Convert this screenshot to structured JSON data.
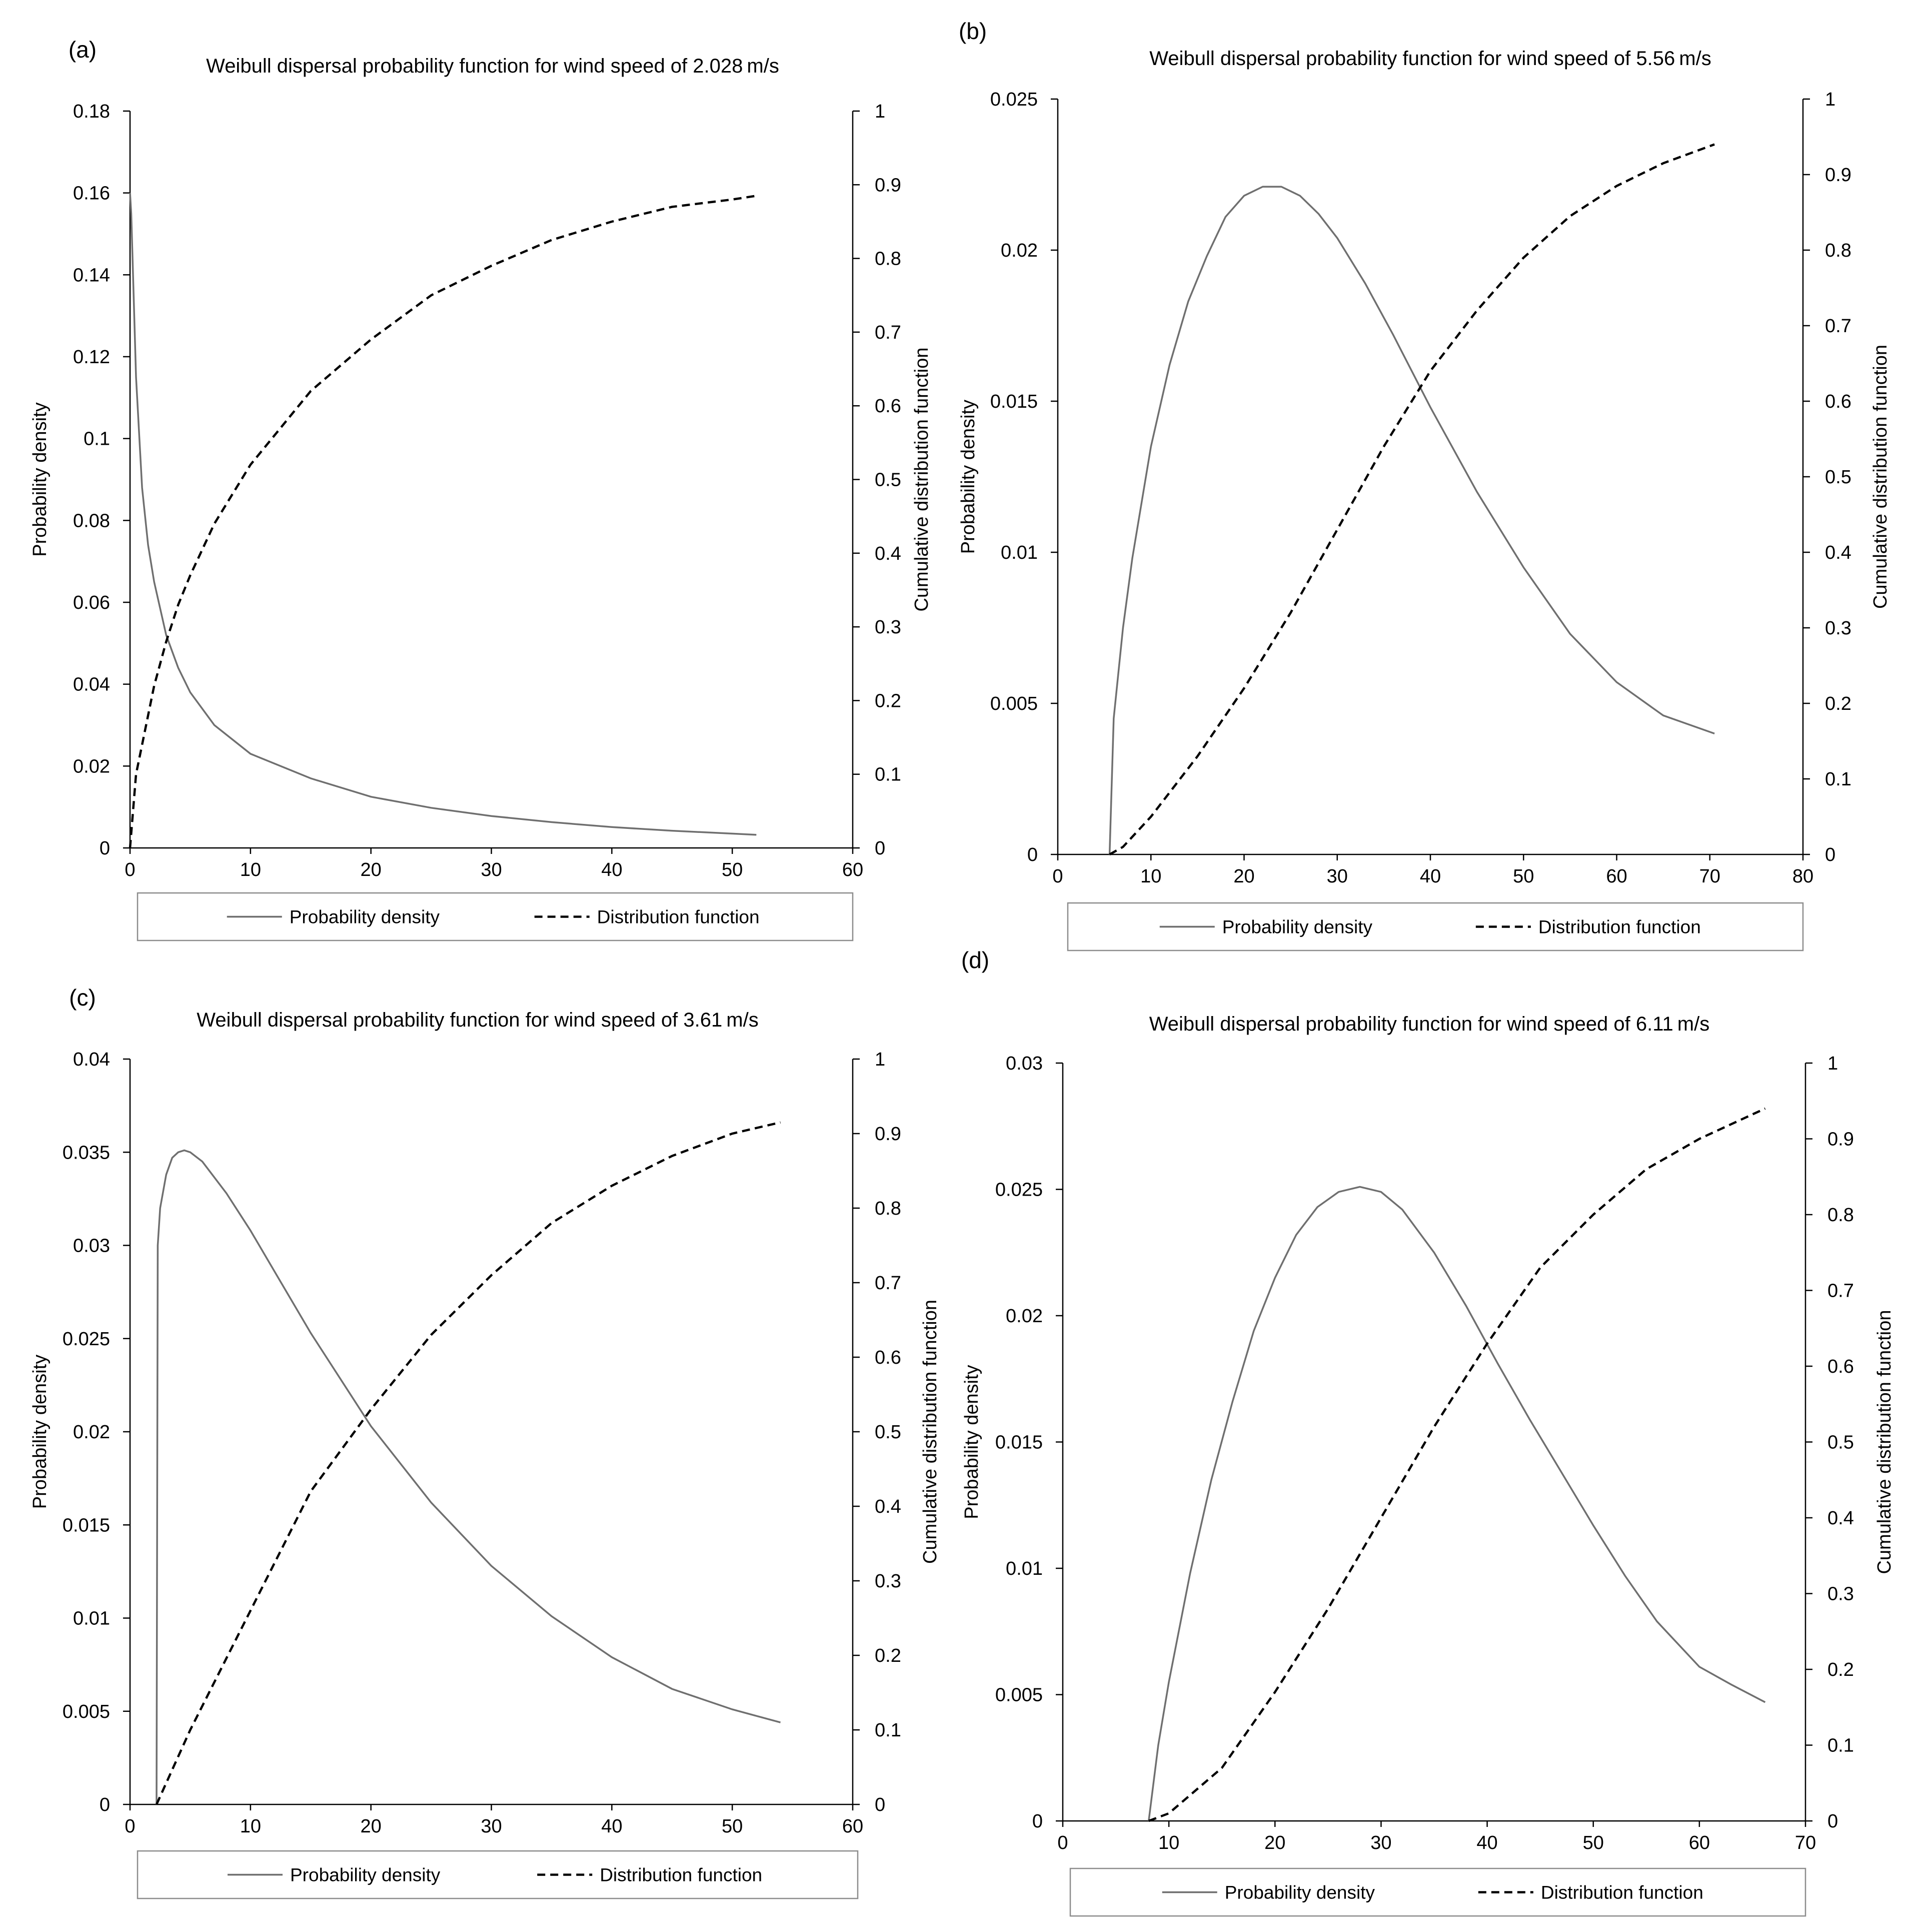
{
  "figure": {
    "legend_labels": [
      "Probability density",
      "Distribution function"
    ]
  },
  "chart_data": [
    {
      "panel": "(a)",
      "type": "line",
      "title": "Weibull dispersal probability function for wind speed of 2.028 m/s",
      "xlabel": "",
      "ylabel": "Probability density",
      "y2label": "Cumulative distribution function",
      "xlim": [
        0,
        60
      ],
      "ylim": [
        0,
        0.18
      ],
      "y2lim": [
        0,
        1
      ],
      "x_ticks": [
        "0",
        "10",
        "20",
        "30",
        "40",
        "50",
        "60"
      ],
      "y_ticks": [
        "0",
        "0.02",
        "0.04",
        "0.06",
        "0.08",
        "0.1",
        "0.12",
        "0.14",
        "0.16",
        "0.18"
      ],
      "y2_ticks": [
        "0",
        "0.1",
        "0.2",
        "0.3",
        "0.4",
        "0.5",
        "0.6",
        "0.7",
        "0.8",
        "0.9",
        "1"
      ],
      "legend": [
        "Probability density",
        "Distribution function"
      ],
      "series": [
        {
          "name": "Probability density",
          "axis": "left",
          "style": "solid",
          "x": [
            0,
            0.1,
            0.3,
            0.5,
            1,
            1.5,
            2,
            3,
            4,
            5,
            7,
            10,
            15,
            20,
            25,
            30,
            35,
            40,
            45,
            50,
            52
          ],
          "y": [
            0.16,
            0.155,
            0.135,
            0.115,
            0.088,
            0.074,
            0.065,
            0.052,
            0.044,
            0.038,
            0.03,
            0.023,
            0.017,
            0.0125,
            0.0098,
            0.0078,
            0.0063,
            0.0051,
            0.0042,
            0.0035,
            0.0032
          ]
        },
        {
          "name": "Distribution function",
          "axis": "right",
          "style": "dashed",
          "x": [
            0,
            0.5,
            1,
            2,
            3,
            4,
            5,
            7,
            10,
            15,
            20,
            25,
            30,
            35,
            40,
            45,
            50,
            52
          ],
          "y": [
            0,
            0.1,
            0.14,
            0.22,
            0.28,
            0.33,
            0.37,
            0.44,
            0.52,
            0.62,
            0.69,
            0.75,
            0.79,
            0.825,
            0.85,
            0.87,
            0.88,
            0.885
          ]
        }
      ]
    },
    {
      "panel": "(b)",
      "type": "line",
      "title": "Weibull dispersal probability function for wind speed of 5.56 m/s",
      "xlabel": "",
      "ylabel": "Probability density",
      "y2label": "Cumulative distribution function",
      "xlim": [
        0,
        80
      ],
      "ylim": [
        0,
        0.025
      ],
      "y2lim": [
        0,
        1
      ],
      "x_ticks": [
        "0",
        "10",
        "20",
        "30",
        "40",
        "50",
        "60",
        "70",
        "80"
      ],
      "y_ticks": [
        "0",
        "0.005",
        "0.01",
        "0.015",
        "0.02",
        "0.025"
      ],
      "y2_ticks": [
        "0",
        "0.1",
        "0.2",
        "0.3",
        "0.4",
        "0.5",
        "0.6",
        "0.7",
        "0.8",
        "0.9",
        "1"
      ],
      "legend": [
        "Probability density",
        "Distribution function"
      ],
      "series": [
        {
          "name": "Probability density",
          "axis": "left",
          "style": "solid",
          "x": [
            5.56,
            6,
            7,
            8,
            10,
            12,
            14,
            16,
            18,
            20,
            22,
            24,
            26,
            28,
            30,
            33,
            36,
            40,
            45,
            50,
            55,
            60,
            65,
            70.5
          ],
          "y": [
            0,
            0.0045,
            0.0075,
            0.0098,
            0.0135,
            0.0162,
            0.0183,
            0.0198,
            0.0211,
            0.0218,
            0.0221,
            0.0221,
            0.0218,
            0.0212,
            0.0204,
            0.0189,
            0.0172,
            0.0148,
            0.012,
            0.0095,
            0.0073,
            0.0057,
            0.0046,
            0.004
          ]
        },
        {
          "name": "Distribution function",
          "axis": "right",
          "style": "dashed",
          "x": [
            5.56,
            7,
            10,
            15,
            20,
            25,
            30,
            35,
            40,
            45,
            50,
            55,
            60,
            65,
            70.5
          ],
          "y": [
            0,
            0.01,
            0.05,
            0.13,
            0.22,
            0.32,
            0.43,
            0.54,
            0.64,
            0.72,
            0.79,
            0.845,
            0.885,
            0.915,
            0.94
          ]
        }
      ]
    },
    {
      "panel": "(c)",
      "type": "line",
      "title": "Weibull dispersal probability function for wind speed of 3.61 m/s",
      "xlabel": "",
      "ylabel": "Probability density",
      "y2label": "Cumulative distribution function",
      "xlim": [
        0,
        60
      ],
      "ylim": [
        0,
        0.04
      ],
      "y2lim": [
        0,
        1
      ],
      "x_ticks": [
        "0",
        "10",
        "20",
        "30",
        "40",
        "50",
        "60"
      ],
      "y_ticks": [
        "0",
        "0.005",
        "0.01",
        "0.015",
        "0.02",
        "0.025",
        "0.03",
        "0.035",
        "0.04"
      ],
      "y2_ticks": [
        "0",
        "0.1",
        "0.2",
        "0.3",
        "0.4",
        "0.5",
        "0.6",
        "0.7",
        "0.8",
        "0.9",
        "1"
      ],
      "legend": [
        "Probability density",
        "Distribution function"
      ],
      "series": [
        {
          "name": "Probability density",
          "axis": "left",
          "style": "solid",
          "x": [
            2.2,
            2.3,
            2.5,
            3,
            3.5,
            4,
            4.5,
            5,
            6,
            8,
            10,
            12,
            15,
            20,
            25,
            30,
            35,
            40,
            45,
            50,
            54
          ],
          "y": [
            0,
            0.03,
            0.032,
            0.0338,
            0.0347,
            0.035,
            0.0351,
            0.035,
            0.0345,
            0.0328,
            0.0308,
            0.0286,
            0.0253,
            0.0203,
            0.0162,
            0.0128,
            0.0101,
            0.0079,
            0.0062,
            0.0051,
            0.0044
          ]
        },
        {
          "name": "Distribution function",
          "axis": "right",
          "style": "dashed",
          "x": [
            2.2,
            5,
            10,
            15,
            20,
            25,
            30,
            35,
            40,
            45,
            50,
            54
          ],
          "y": [
            0,
            0.1,
            0.26,
            0.42,
            0.53,
            0.63,
            0.71,
            0.78,
            0.83,
            0.87,
            0.9,
            0.915
          ]
        }
      ]
    },
    {
      "panel": "(d)",
      "type": "line",
      "title": "Weibull dispersal probability function for wind speed of 6.11 m/s",
      "xlabel": "",
      "ylabel": "Probability density",
      "y2label": "Cumulative distribution function",
      "xlim": [
        0,
        70
      ],
      "ylim": [
        0,
        0.03
      ],
      "y2lim": [
        0,
        1
      ],
      "x_ticks": [
        "0",
        "10",
        "20",
        "30",
        "40",
        "50",
        "60",
        "70"
      ],
      "y_ticks": [
        "0",
        "0.005",
        "0.01",
        "0.015",
        "0.02",
        "0.025",
        "0.03"
      ],
      "y2_ticks": [
        "0",
        "0.1",
        "0.2",
        "0.3",
        "0.4",
        "0.5",
        "0.6",
        "0.7",
        "0.8",
        "0.9",
        "1"
      ],
      "legend": [
        "Probability density",
        "Distribution function"
      ],
      "series": [
        {
          "name": "Probability density",
          "axis": "left",
          "style": "solid",
          "x": [
            8.1,
            9,
            10,
            12,
            14,
            16,
            18,
            20,
            22,
            24,
            26,
            28,
            30,
            32,
            35,
            38,
            41,
            44,
            47,
            50,
            53,
            56,
            60,
            63,
            66.2
          ],
          "y": [
            0,
            0.003,
            0.0055,
            0.0098,
            0.0135,
            0.0166,
            0.0194,
            0.0215,
            0.0232,
            0.0243,
            0.0249,
            0.0251,
            0.0249,
            0.0242,
            0.0225,
            0.0204,
            0.0181,
            0.0159,
            0.0138,
            0.0117,
            0.0097,
            0.0079,
            0.0061,
            0.0054,
            0.0047
          ]
        },
        {
          "name": "Distribution function",
          "axis": "right",
          "style": "dashed",
          "x": [
            8.1,
            10,
            15,
            20,
            25,
            30,
            35,
            40,
            45,
            50,
            55,
            60,
            66.2
          ],
          "y": [
            0,
            0.01,
            0.07,
            0.17,
            0.28,
            0.4,
            0.52,
            0.63,
            0.73,
            0.8,
            0.86,
            0.9,
            0.94
          ]
        }
      ]
    }
  ]
}
